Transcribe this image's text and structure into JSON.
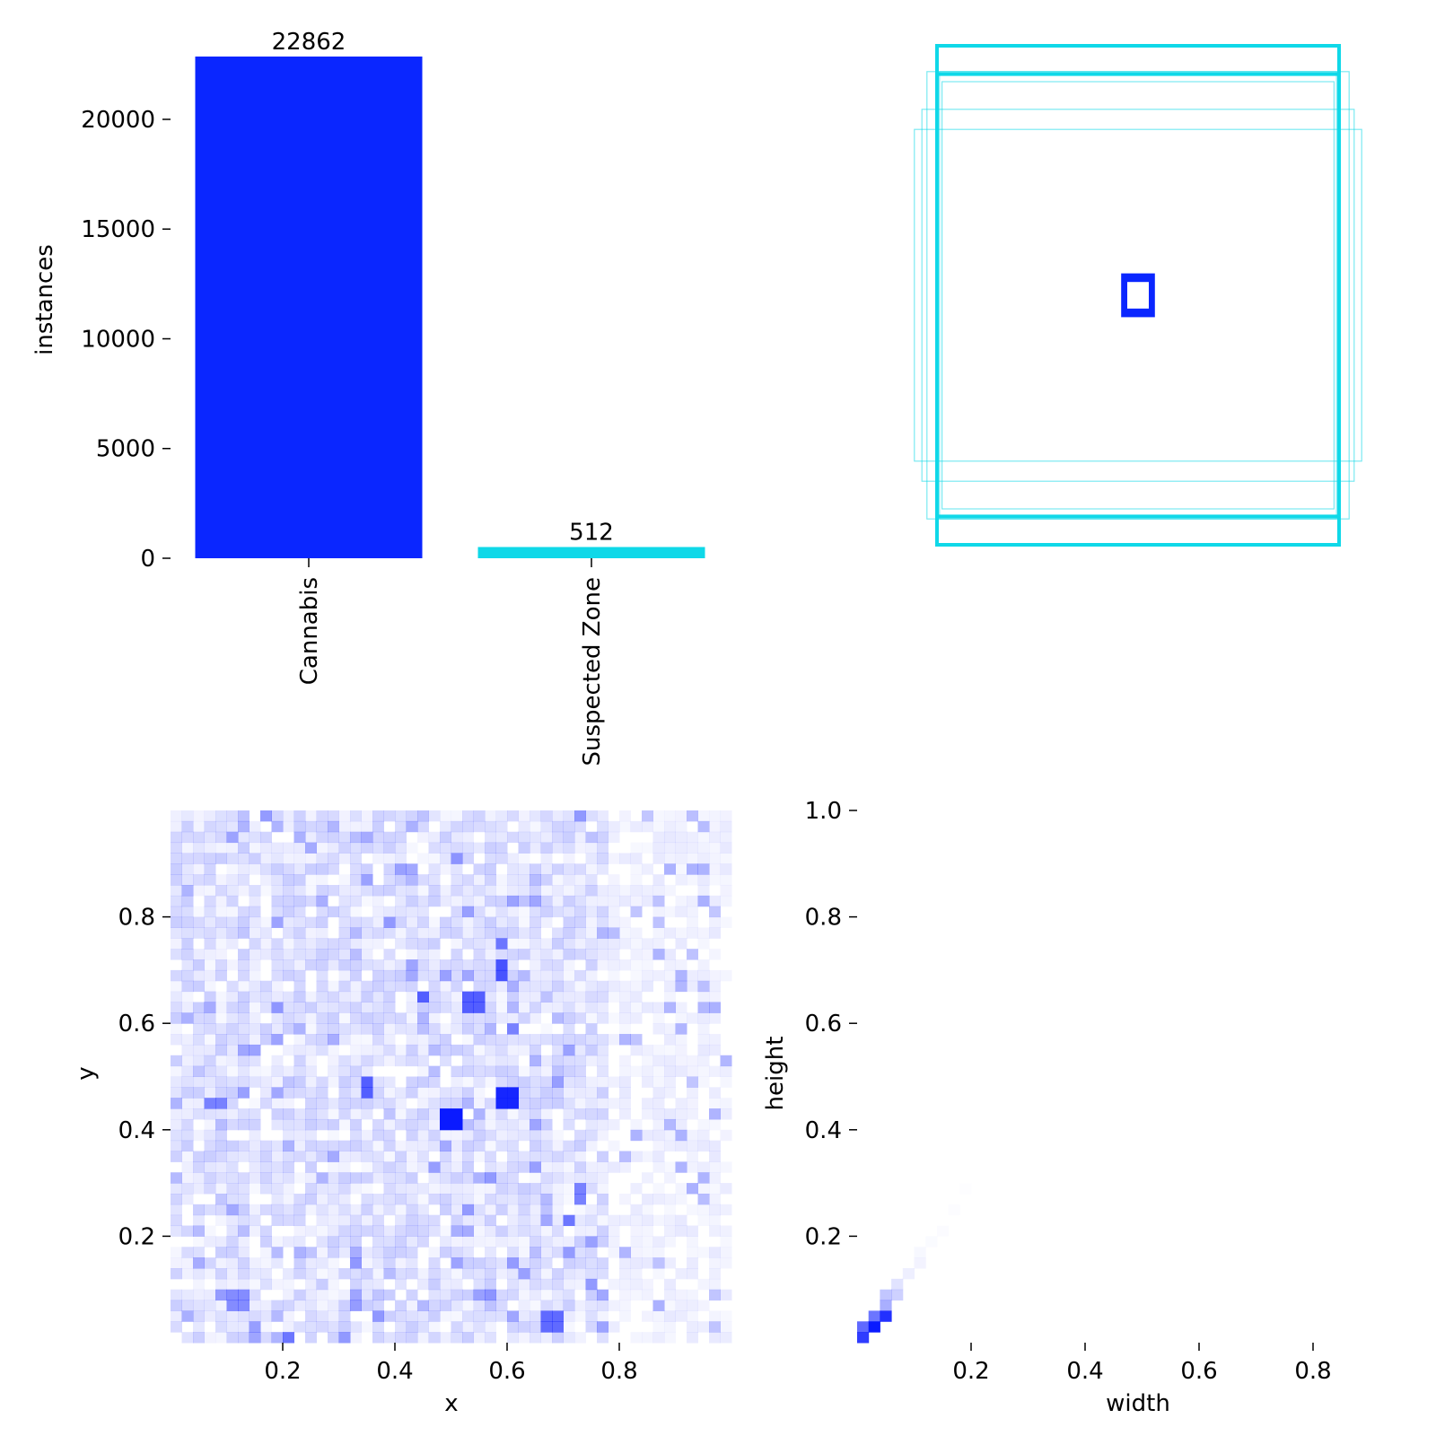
{
  "colors": {
    "cannabis": "#0a26ff",
    "suspected_zone": "#0fd8e8",
    "heat": "#0a1aff"
  },
  "chart_data": [
    {
      "type": "bar",
      "categories": [
        "Cannabis",
        "Suspected Zone"
      ],
      "values": [
        22862,
        512
      ],
      "data_labels": [
        "22862",
        "512"
      ],
      "xlabel": "",
      "ylabel": "instances",
      "ylim": [
        0,
        23500
      ],
      "yticks": [
        0,
        5000,
        10000,
        15000,
        20000
      ],
      "ytick_labels": [
        "0",
        "5000",
        "10000",
        "15000",
        "20000"
      ]
    },
    {
      "type": "scatter",
      "description_kind": "bounding-box overlay",
      "boxes": [
        {
          "w": 0.8,
          "h": 0.88,
          "class": "Suspected Zone"
        },
        {
          "w": 0.84,
          "h": 0.89,
          "class": "Suspected Zone"
        },
        {
          "w": 0.78,
          "h": 0.85,
          "class": "Suspected Zone"
        },
        {
          "w": 0.86,
          "h": 0.74,
          "class": "Suspected Zone"
        },
        {
          "w": 0.89,
          "h": 0.66,
          "class": "Suspected Zone"
        },
        {
          "w": 0.79,
          "h": 0.89,
          "class": "Suspected Zone"
        },
        {
          "w": 0.05,
          "h": 0.06,
          "class": "Cannabis"
        },
        {
          "w": 0.06,
          "h": 0.08,
          "class": "Cannabis"
        },
        {
          "w": 0.05,
          "h": 0.07,
          "class": "Cannabis"
        }
      ]
    },
    {
      "type": "heatmap",
      "xlabel": "x",
      "ylabel": "y",
      "xlim": [
        0,
        1
      ],
      "ylim": [
        0,
        1
      ],
      "xticks": [
        0.2,
        0.4,
        0.6,
        0.8
      ],
      "xtick_labels": [
        "0.2",
        "0.4",
        "0.6",
        "0.8"
      ],
      "yticks": [
        0.2,
        0.4,
        0.6,
        0.8
      ],
      "ytick_labels": [
        "0.2",
        "0.4",
        "0.6",
        "0.8"
      ],
      "hotspots": [
        {
          "x": 0.5,
          "y": 0.42,
          "v": 1.0
        },
        {
          "x": 0.6,
          "y": 0.46,
          "v": 0.95
        },
        {
          "x": 0.35,
          "y": 0.48,
          "v": 0.7
        },
        {
          "x": 0.59,
          "y": 0.7,
          "v": 0.75
        },
        {
          "x": 0.45,
          "y": 0.65,
          "v": 0.7
        },
        {
          "x": 0.54,
          "y": 0.64,
          "v": 0.7
        },
        {
          "x": 0.59,
          "y": 0.75,
          "v": 0.6
        },
        {
          "x": 0.68,
          "y": 0.04,
          "v": 0.65
        },
        {
          "x": 0.71,
          "y": 0.23,
          "v": 0.6
        },
        {
          "x": 0.73,
          "y": 0.28,
          "v": 0.55
        },
        {
          "x": 0.61,
          "y": 0.59,
          "v": 0.55
        },
        {
          "x": 0.21,
          "y": 0.01,
          "v": 0.6
        },
        {
          "x": 0.12,
          "y": 0.08,
          "v": 0.5
        },
        {
          "x": 0.08,
          "y": 0.45,
          "v": 0.55
        }
      ]
    },
    {
      "type": "heatmap",
      "xlabel": "width",
      "ylabel": "height",
      "xlim": [
        0,
        1
      ],
      "ylim": [
        0,
        1
      ],
      "xticks": [
        0.2,
        0.4,
        0.6,
        0.8
      ],
      "xtick_labels": [
        "0.2",
        "0.4",
        "0.6",
        "0.8"
      ],
      "yticks": [
        0.2,
        0.4,
        0.6,
        0.8,
        1.0
      ],
      "ytick_labels": [
        "0.2",
        "0.4",
        "0.6",
        "0.8",
        "1.0"
      ],
      "cells": [
        {
          "w": 0.01,
          "h": 0.01,
          "v": 0.85
        },
        {
          "w": 0.01,
          "h": 0.03,
          "v": 0.65
        },
        {
          "w": 0.03,
          "h": 0.03,
          "v": 1.0
        },
        {
          "w": 0.03,
          "h": 0.05,
          "v": 0.6
        },
        {
          "w": 0.05,
          "h": 0.05,
          "v": 0.9
        },
        {
          "w": 0.05,
          "h": 0.07,
          "v": 0.35
        },
        {
          "w": 0.05,
          "h": 0.09,
          "v": 0.25
        },
        {
          "w": 0.07,
          "h": 0.09,
          "v": 0.2
        },
        {
          "w": 0.07,
          "h": 0.11,
          "v": 0.12
        },
        {
          "w": 0.09,
          "h": 0.13,
          "v": 0.07
        },
        {
          "w": 0.11,
          "h": 0.15,
          "v": 0.05
        },
        {
          "w": 0.11,
          "h": 0.17,
          "v": 0.03
        },
        {
          "w": 0.13,
          "h": 0.19,
          "v": 0.02
        },
        {
          "w": 0.15,
          "h": 0.21,
          "v": 0.015
        },
        {
          "w": 0.17,
          "h": 0.25,
          "v": 0.01
        },
        {
          "w": 0.19,
          "h": 0.29,
          "v": 0.008
        }
      ]
    }
  ]
}
